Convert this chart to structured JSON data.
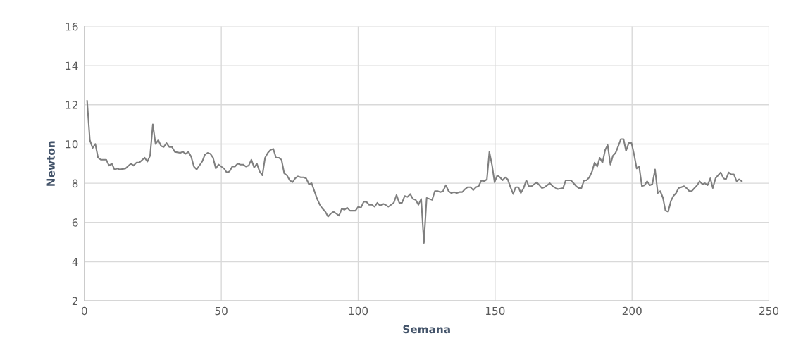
{
  "chart_data": {
    "type": "line",
    "xlabel": "Semana",
    "ylabel": "Newton",
    "xlim": [
      0,
      250
    ],
    "xticks": [
      0,
      50,
      100,
      150,
      200,
      250
    ],
    "ylim": [
      2,
      16
    ],
    "yticks": [
      2,
      4,
      6,
      8,
      10,
      12,
      14,
      16
    ],
    "grid": true,
    "legend": false,
    "marker": "none",
    "line_style": "solid",
    "series": [
      {
        "color": "#7f7f7f",
        "x": [
          1,
          2,
          3,
          4,
          5,
          6,
          7,
          8,
          9,
          10,
          11,
          12,
          13,
          15,
          17,
          18,
          19,
          20,
          22,
          23,
          24,
          25,
          26,
          27,
          28,
          29,
          30,
          31,
          32,
          33,
          35,
          36,
          37,
          38,
          39,
          40,
          41,
          43,
          44,
          45,
          46,
          47,
          48,
          49,
          50,
          51,
          52,
          53,
          54,
          55,
          56,
          57,
          58,
          59,
          60,
          61,
          62,
          63,
          64,
          65,
          66,
          67,
          68,
          69,
          70,
          71,
          72,
          73,
          74,
          75,
          76,
          77,
          78,
          79,
          80,
          81,
          82,
          83,
          84,
          85,
          86,
          87,
          88,
          89,
          90,
          91,
          92,
          93,
          94,
          95,
          96,
          97,
          98,
          99,
          100,
          101,
          102,
          103,
          104,
          105,
          106,
          107,
          108,
          109,
          110,
          111,
          112,
          113,
          114,
          115,
          116,
          117,
          118,
          119,
          120,
          121,
          122,
          123,
          124,
          125,
          126,
          127,
          128,
          129,
          130,
          131,
          132,
          133,
          134,
          135,
          136,
          137,
          138,
          139,
          140,
          141,
          142,
          143,
          144,
          145,
          146,
          147,
          147.9,
          148.9,
          149.8,
          150.8,
          151.8,
          152.7,
          153.7,
          154.6,
          155.6,
          156.6,
          157.5,
          158.5,
          159.4,
          160.4,
          161.4,
          162.3,
          163.3,
          165.2,
          167.1,
          168.1,
          170,
          171,
          172.9,
          174.8,
          175.8,
          177.7,
          179.6,
          180.6,
          181.5,
          182.5,
          183.4,
          184.4,
          185.4,
          186.3,
          187.3,
          188.2,
          189.2,
          190.2,
          191.1,
          192.1,
          193,
          194,
          195,
          195.9,
          196.9,
          197.8,
          198.8,
          199.8,
          200.7,
          201.7,
          202.6,
          203.6,
          204.6,
          205.5,
          206.5,
          207.4,
          208.4,
          209.4,
          210.3,
          211.3,
          212.2,
          213.2,
          214.2,
          215.1,
          216.1,
          217,
          218,
          219,
          219.9,
          220.9,
          221.8,
          222.8,
          223.8,
          224.7,
          225.7,
          226.6,
          227.6,
          228.6,
          229.5,
          230.5,
          231.4,
          232.4,
          233.4,
          234.3,
          235.3,
          236.2,
          237.2,
          238.2,
          239.1,
          240.1
        ],
        "values": [
          12.2,
          10.2,
          9.8,
          10.0,
          9.3,
          9.2,
          9.2,
          9.2,
          8.9,
          9.0,
          8.7,
          8.75,
          8.7,
          8.75,
          9.0,
          8.9,
          9.05,
          9.05,
          9.3,
          9.1,
          9.4,
          11.0,
          10.0,
          10.2,
          9.9,
          9.85,
          10.05,
          9.85,
          9.85,
          9.6,
          9.55,
          9.6,
          9.5,
          9.6,
          9.35,
          8.85,
          8.7,
          9.1,
          9.45,
          9.55,
          9.5,
          9.3,
          8.75,
          8.95,
          8.85,
          8.75,
          8.55,
          8.6,
          8.85,
          8.85,
          9.0,
          8.95,
          8.95,
          8.85,
          8.9,
          9.2,
          8.8,
          9.0,
          8.6,
          8.4,
          9.3,
          9.55,
          9.7,
          9.75,
          9.3,
          9.3,
          9.2,
          8.5,
          8.4,
          8.15,
          8.05,
          8.25,
          8.35,
          8.3,
          8.3,
          8.25,
          7.95,
          8.0,
          7.6,
          7.2,
          6.9,
          6.7,
          6.55,
          6.3,
          6.45,
          6.55,
          6.45,
          6.35,
          6.7,
          6.65,
          6.75,
          6.6,
          6.6,
          6.6,
          6.8,
          6.75,
          7.05,
          7.05,
          6.9,
          6.9,
          6.8,
          7.0,
          6.85,
          6.95,
          6.9,
          6.8,
          6.9,
          7.0,
          7.4,
          7.0,
          7.0,
          7.35,
          7.3,
          7.45,
          7.2,
          7.15,
          6.9,
          7.2,
          4.95,
          7.25,
          7.2,
          7.15,
          7.6,
          7.6,
          7.55,
          7.6,
          7.9,
          7.6,
          7.5,
          7.55,
          7.5,
          7.55,
          7.55,
          7.7,
          7.8,
          7.8,
          7.65,
          7.8,
          7.85,
          8.15,
          8.1,
          8.2,
          9.6,
          8.9,
          8.05,
          8.4,
          8.3,
          8.15,
          8.3,
          8.2,
          7.8,
          7.45,
          7.8,
          7.8,
          7.5,
          7.75,
          8.15,
          7.85,
          7.85,
          8.05,
          7.75,
          7.8,
          8.0,
          7.85,
          7.7,
          7.75,
          8.15,
          8.15,
          7.85,
          7.75,
          7.75,
          8.15,
          8.15,
          8.3,
          8.6,
          9.05,
          8.85,
          9.3,
          9.05,
          9.7,
          9.95,
          8.95,
          9.4,
          9.55,
          9.9,
          10.25,
          10.25,
          9.65,
          10.05,
          10.05,
          9.5,
          8.75,
          8.85,
          7.85,
          7.9,
          8.1,
          7.9,
          7.95,
          8.7,
          7.5,
          7.6,
          7.25,
          6.6,
          6.55,
          7.1,
          7.35,
          7.5,
          7.75,
          7.8,
          7.85,
          7.75,
          7.6,
          7.6,
          7.75,
          7.9,
          8.1,
          7.95,
          8.0,
          7.9,
          8.25,
          7.75,
          8.25,
          8.4,
          8.55,
          8.25,
          8.2,
          8.55,
          8.45,
          8.45,
          8.1,
          8.2,
          8.1
        ]
      }
    ]
  }
}
